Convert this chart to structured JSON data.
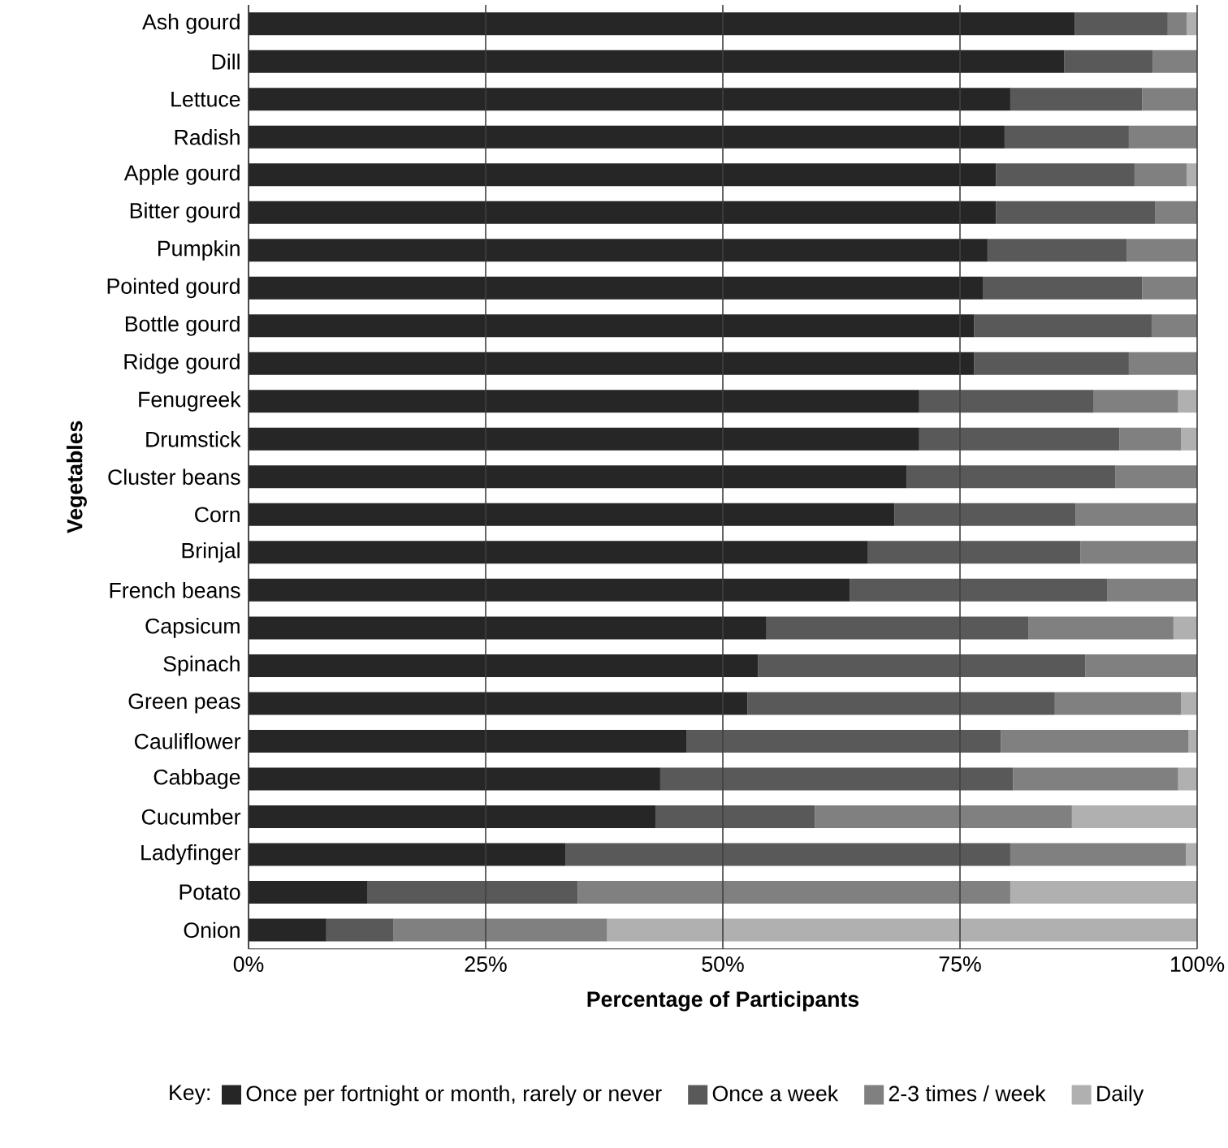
{
  "chart_data": {
    "type": "bar",
    "orientation": "horizontal",
    "stacked": true,
    "xlabel": "Percentage of Participants",
    "ylabel": "Vegetables",
    "legend_title": "Key:",
    "legend": "bottom",
    "grid": "x",
    "categories": [
      "Ash gourd",
      "Dill",
      "Lettuce",
      "Radish",
      "Apple gourd",
      "Bitter gourd",
      "Pumpkin",
      "Pointed gourd",
      "Bottle gourd",
      "Ridge gourd",
      "Fenugreek",
      "Drumstick",
      "Cluster beans",
      "Corn",
      "Brinjal",
      "French beans",
      "Capsicum",
      "Spinach",
      "Green peas",
      "Cauliflower",
      "Cabbage",
      "Cucumber",
      "Ladyfinger",
      "Potato",
      "Onion"
    ],
    "xlim": [
      0,
      100
    ],
    "xticks": [
      {
        "value": 0,
        "label": "0%"
      },
      {
        "value": 25,
        "label": "25%"
      },
      {
        "value": 50,
        "label": "50%"
      },
      {
        "value": 75,
        "label": "75%"
      },
      {
        "value": 100,
        "label": "100%"
      }
    ],
    "series": [
      {
        "name": "Once per fortnight or month, rarely or never",
        "color": "#262626",
        "values": [
          87.1,
          86.0,
          80.3,
          79.7,
          78.8,
          78.8,
          77.9,
          77.4,
          76.5,
          76.5,
          70.7,
          70.7,
          69.4,
          68.1,
          65.3,
          63.4,
          54.6,
          53.7,
          52.6,
          46.2,
          43.4,
          42.9,
          33.4,
          12.5,
          8.2
        ]
      },
      {
        "name": "Once a week",
        "color": "#595959",
        "values": [
          9.8,
          9.3,
          13.9,
          13.1,
          14.6,
          16.8,
          14.7,
          16.8,
          18.7,
          16.3,
          18.4,
          21.1,
          22.0,
          19.1,
          22.4,
          27.1,
          27.6,
          34.5,
          32.4,
          33.1,
          37.2,
          16.8,
          46.9,
          22.2,
          7.1
        ]
      },
      {
        "name": "2-3 times / week",
        "color": "#808080",
        "values": [
          2.0,
          4.7,
          5.8,
          7.2,
          5.5,
          4.4,
          7.4,
          5.8,
          4.8,
          7.2,
          8.9,
          6.5,
          8.6,
          12.8,
          12.3,
          9.5,
          15.3,
          11.8,
          13.3,
          19.8,
          17.4,
          27.1,
          18.5,
          45.6,
          22.5
        ]
      },
      {
        "name": "Daily",
        "color": "#b0b0b0",
        "values": [
          1.1,
          0,
          0,
          0,
          1.1,
          0,
          0,
          0,
          0,
          0,
          2.0,
          1.7,
          0,
          0,
          0,
          0,
          2.5,
          0,
          1.7,
          0.9,
          2.0,
          13.2,
          1.2,
          19.7,
          62.2
        ]
      }
    ]
  }
}
